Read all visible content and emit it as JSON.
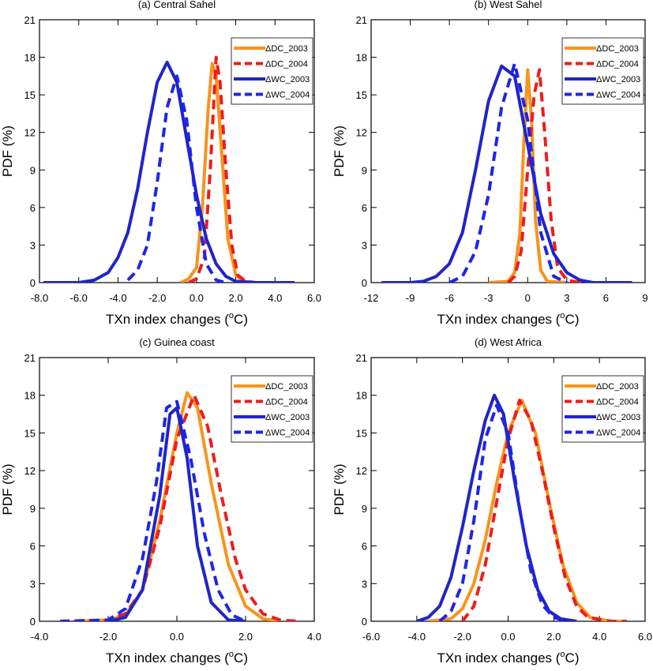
{
  "figure": {
    "legend_labels": [
      "ΔDC_2003",
      "ΔDC_2004",
      "ΔWC_2003",
      "ΔWC_2004"
    ],
    "colors": {
      "dc": "#f7941d",
      "dc_dashed": "#ee1c1c",
      "wc": "#1f25c8",
      "wc_dashed": "#1f25e6"
    }
  },
  "chart_data": [
    {
      "type": "line",
      "title": "(a) Central Sahel",
      "xlabel": "TXn index changes (",
      "xlabel_unit": "o",
      "xlabel_tail": "C)",
      "ylabel": "PDF (%)",
      "xlim": [
        -8,
        6
      ],
      "ylim": [
        0,
        21
      ],
      "xticks": [
        -8,
        -6,
        -4,
        -2,
        0,
        2,
        4,
        6
      ],
      "xtick_labels": [
        "-8.0",
        "-6.0",
        "-4.0",
        "-2.0",
        "0.0",
        "2.0",
        "4.0",
        "6.0"
      ],
      "yticks": [
        0,
        3,
        6,
        9,
        12,
        15,
        18,
        21
      ],
      "legend_position": "top-right",
      "series": [
        {
          "name": "ΔDC_2003",
          "style": "solid",
          "color": "#f7941d",
          "x": [
            -0.8,
            -0.4,
            0.0,
            0.3,
            0.6,
            0.8,
            1.0,
            1.3,
            1.6,
            2.0,
            2.4,
            3.0
          ],
          "y": [
            0,
            0.3,
            1.2,
            6.0,
            14.0,
            17.5,
            16.5,
            10.0,
            3.5,
            0.6,
            0.1,
            0
          ]
        },
        {
          "name": "ΔDC_2004",
          "style": "dashed",
          "color": "#ee1c1c",
          "x": [
            -0.4,
            0.0,
            0.4,
            0.7,
            1.0,
            1.2,
            1.5,
            1.8,
            2.1,
            2.5,
            3.0,
            3.6
          ],
          "y": [
            0,
            0.3,
            2.0,
            9.0,
            18.0,
            16.0,
            9.0,
            3.0,
            0.6,
            0.1,
            0,
            0
          ]
        },
        {
          "name": "ΔWC_2003",
          "style": "solid",
          "color": "#1f25c8",
          "x": [
            -7.8,
            -6.0,
            -5.2,
            -4.5,
            -4.0,
            -3.5,
            -3.0,
            -2.5,
            -2.0,
            -1.5,
            -1.0,
            -0.5,
            0.0,
            0.5,
            1.0,
            1.5,
            2.0,
            3.0,
            4.0,
            5.0
          ],
          "y": [
            0,
            0,
            0.2,
            0.8,
            2.0,
            4.0,
            7.5,
            12.0,
            16.0,
            17.6,
            16.0,
            11.5,
            7.0,
            3.5,
            1.5,
            0.5,
            0.1,
            0,
            0,
            0
          ]
        },
        {
          "name": "ΔWC_2004",
          "style": "dashed",
          "color": "#1f25e6",
          "x": [
            -3.5,
            -3.0,
            -2.5,
            -2.0,
            -1.5,
            -1.0,
            -0.5,
            0.0,
            0.5,
            1.0,
            1.5
          ],
          "y": [
            0.2,
            1.0,
            3.0,
            8.0,
            14.0,
            16.5,
            13.0,
            6.0,
            1.5,
            0.2,
            0
          ]
        }
      ]
    },
    {
      "type": "line",
      "title": "(b) West Sahel",
      "xlabel": "TXn index changes (",
      "xlabel_unit": "o",
      "xlabel_tail": "C)",
      "ylabel": "PDF (%)",
      "xlim": [
        -12,
        9
      ],
      "ylim": [
        0,
        21
      ],
      "xticks": [
        -12,
        -9,
        -6,
        -3,
        0,
        3,
        6,
        9
      ],
      "xtick_labels": [
        "-12",
        "-9",
        "-6",
        "-3",
        "0",
        "3",
        "6",
        "9"
      ],
      "yticks": [
        0,
        3,
        6,
        9,
        12,
        15,
        18,
        21
      ],
      "legend_position": "top-right",
      "series": [
        {
          "name": "ΔDC_2003",
          "style": "solid",
          "color": "#f7941d",
          "x": [
            -3.0,
            -1.5,
            -1.0,
            -0.6,
            -0.3,
            0.0,
            0.3,
            0.6,
            1.0,
            1.5,
            3.0
          ],
          "y": [
            0,
            0.1,
            0.8,
            4.0,
            11.0,
            17.0,
            13.0,
            5.0,
            1.0,
            0.1,
            0
          ]
        },
        {
          "name": "ΔDC_2004",
          "style": "dashed",
          "color": "#ee1c1c",
          "x": [
            -1.5,
            -1.0,
            -0.5,
            0.0,
            0.5,
            0.9,
            1.3,
            1.8,
            2.3,
            3.0,
            4.0
          ],
          "y": [
            0,
            0.5,
            2.5,
            9.0,
            15.0,
            17.0,
            12.0,
            5.0,
            1.2,
            0.2,
            0
          ]
        },
        {
          "name": "ΔWC_2003",
          "style": "solid",
          "color": "#1f25c8",
          "x": [
            -11.2,
            -9.0,
            -8.0,
            -7.0,
            -6.0,
            -5.0,
            -4.0,
            -3.0,
            -2.0,
            -1.0,
            0.0,
            1.0,
            2.0,
            3.0,
            4.0,
            5.0,
            6.0,
            8.0
          ],
          "y": [
            0,
            0,
            0.1,
            0.5,
            1.5,
            4.0,
            9.0,
            14.5,
            17.3,
            16.5,
            11.0,
            5.5,
            2.3,
            0.8,
            0.2,
            0,
            0,
            0
          ]
        },
        {
          "name": "ΔWC_2004",
          "style": "dashed",
          "color": "#1f25e6",
          "x": [
            -6.0,
            -5.0,
            -4.0,
            -3.0,
            -2.0,
            -1.0,
            0.0,
            1.0,
            2.0,
            3.0
          ],
          "y": [
            0,
            0.5,
            2.5,
            7.0,
            14.0,
            17.5,
            13.0,
            4.0,
            0.5,
            0
          ]
        }
      ]
    },
    {
      "type": "line",
      "title": "(c) Guinea coast",
      "xlabel": "TXn index changes (",
      "xlabel_unit": "o",
      "xlabel_tail": "C)",
      "ylabel": "PDF (%)",
      "xlim": [
        -4,
        4
      ],
      "ylim": [
        0,
        21
      ],
      "xticks": [
        -4,
        -2,
        0,
        2,
        4
      ],
      "xtick_labels": [
        "-4.0",
        "-2.0",
        "0.0",
        "2.0",
        "4.0"
      ],
      "yticks": [
        0,
        3,
        6,
        9,
        12,
        15,
        18,
        21
      ],
      "legend_position": "top-right",
      "series": [
        {
          "name": "ΔDC_2003",
          "style": "solid",
          "color": "#f7941d",
          "x": [
            -3.0,
            -2.0,
            -1.5,
            -1.0,
            -0.5,
            0.0,
            0.3,
            0.6,
            1.0,
            1.5,
            2.0,
            2.5,
            3.0
          ],
          "y": [
            0,
            0.1,
            0.5,
            2.5,
            8.0,
            15.0,
            18.2,
            17.0,
            11.0,
            4.5,
            1.2,
            0.2,
            0
          ]
        },
        {
          "name": "ΔDC_2004",
          "style": "dashed",
          "color": "#ee1c1c",
          "x": [
            -3.0,
            -2.0,
            -1.5,
            -1.0,
            -0.5,
            0.0,
            0.5,
            0.9,
            1.3,
            1.7,
            2.0,
            2.5,
            3.0,
            3.5
          ],
          "y": [
            0,
            0.1,
            0.6,
            2.5,
            7.5,
            14.5,
            18.0,
            15.5,
            10.0,
            5.0,
            2.5,
            0.6,
            0.1,
            0
          ]
        },
        {
          "name": "ΔWC_2003",
          "style": "solid",
          "color": "#1f25c8",
          "x": [
            -2.0,
            -1.5,
            -1.0,
            -0.5,
            -0.2,
            0.0,
            0.3,
            0.6,
            1.0,
            1.5,
            2.0
          ],
          "y": [
            0,
            0.3,
            2.5,
            10.0,
            16.5,
            17.0,
            13.0,
            6.0,
            1.5,
            0.1,
            0
          ]
        },
        {
          "name": "ΔWC_2004",
          "style": "dashed",
          "color": "#1f25e6",
          "x": [
            -3.4,
            -2.0,
            -1.5,
            -1.0,
            -0.6,
            -0.3,
            0.0,
            0.4,
            0.8,
            1.2,
            1.6,
            2.0
          ],
          "y": [
            0,
            0.1,
            1.0,
            5.0,
            11.0,
            17.0,
            17.5,
            13.0,
            7.0,
            2.5,
            0.5,
            0
          ]
        }
      ]
    },
    {
      "type": "line",
      "title": "(d) West Africa",
      "xlabel": "TXn index changes (",
      "xlabel_unit": "o",
      "xlabel_tail": "C)",
      "ylabel": "PDF (%)",
      "xlim": [
        -6,
        6
      ],
      "ylim": [
        0,
        21
      ],
      "xticks": [
        -6,
        -4,
        -2,
        0,
        2,
        4,
        6
      ],
      "xtick_labels": [
        "-6.0",
        "-4.0",
        "-2.0",
        "0.0",
        "2.0",
        "4.0",
        "6.0"
      ],
      "yticks": [
        0,
        3,
        6,
        9,
        12,
        15,
        18,
        21
      ],
      "legend_position": "top-right",
      "series": [
        {
          "name": "ΔDC_2003",
          "style": "solid",
          "color": "#f7941d",
          "x": [
            -3.5,
            -2.5,
            -2.0,
            -1.5,
            -1.0,
            -0.5,
            0.0,
            0.6,
            1.2,
            1.8,
            2.4,
            3.0,
            3.6,
            4.5,
            5.0
          ],
          "y": [
            0,
            0.2,
            1.0,
            3.0,
            6.5,
            11.0,
            15.0,
            17.6,
            15.0,
            9.5,
            4.5,
            1.5,
            0.3,
            0,
            0
          ]
        },
        {
          "name": "ΔDC_2004",
          "style": "dashed",
          "color": "#ee1c1c",
          "x": [
            -2.0,
            -1.5,
            -1.0,
            -0.5,
            0.0,
            0.5,
            1.0,
            1.5,
            2.0,
            2.5,
            3.0,
            3.5,
            4.5,
            5.2
          ],
          "y": [
            0,
            1.2,
            4.5,
            9.5,
            14.5,
            17.6,
            16.0,
            12.0,
            7.5,
            3.5,
            1.2,
            0.3,
            0,
            0
          ]
        },
        {
          "name": "ΔWC_2003",
          "style": "solid",
          "color": "#1f25c8",
          "x": [
            -4.0,
            -3.5,
            -3.0,
            -2.5,
            -2.0,
            -1.5,
            -1.0,
            -0.6,
            -0.2,
            0.3,
            0.8,
            1.3,
            1.8,
            2.3,
            3.0
          ],
          "y": [
            0,
            0.3,
            1.2,
            3.5,
            7.5,
            12.0,
            16.0,
            18.0,
            16.5,
            11.0,
            6.0,
            2.5,
            0.8,
            0.2,
            0
          ]
        },
        {
          "name": "ΔWC_2004",
          "style": "dashed",
          "color": "#1f25e6",
          "x": [
            -3.0,
            -2.5,
            -2.0,
            -1.5,
            -1.0,
            -0.5,
            0.0,
            0.5,
            1.0,
            1.5,
            2.0,
            2.6
          ],
          "y": [
            0,
            0.8,
            3.0,
            8.0,
            14.5,
            17.2,
            15.0,
            9.0,
            4.0,
            1.3,
            0.3,
            0
          ]
        }
      ]
    }
  ]
}
